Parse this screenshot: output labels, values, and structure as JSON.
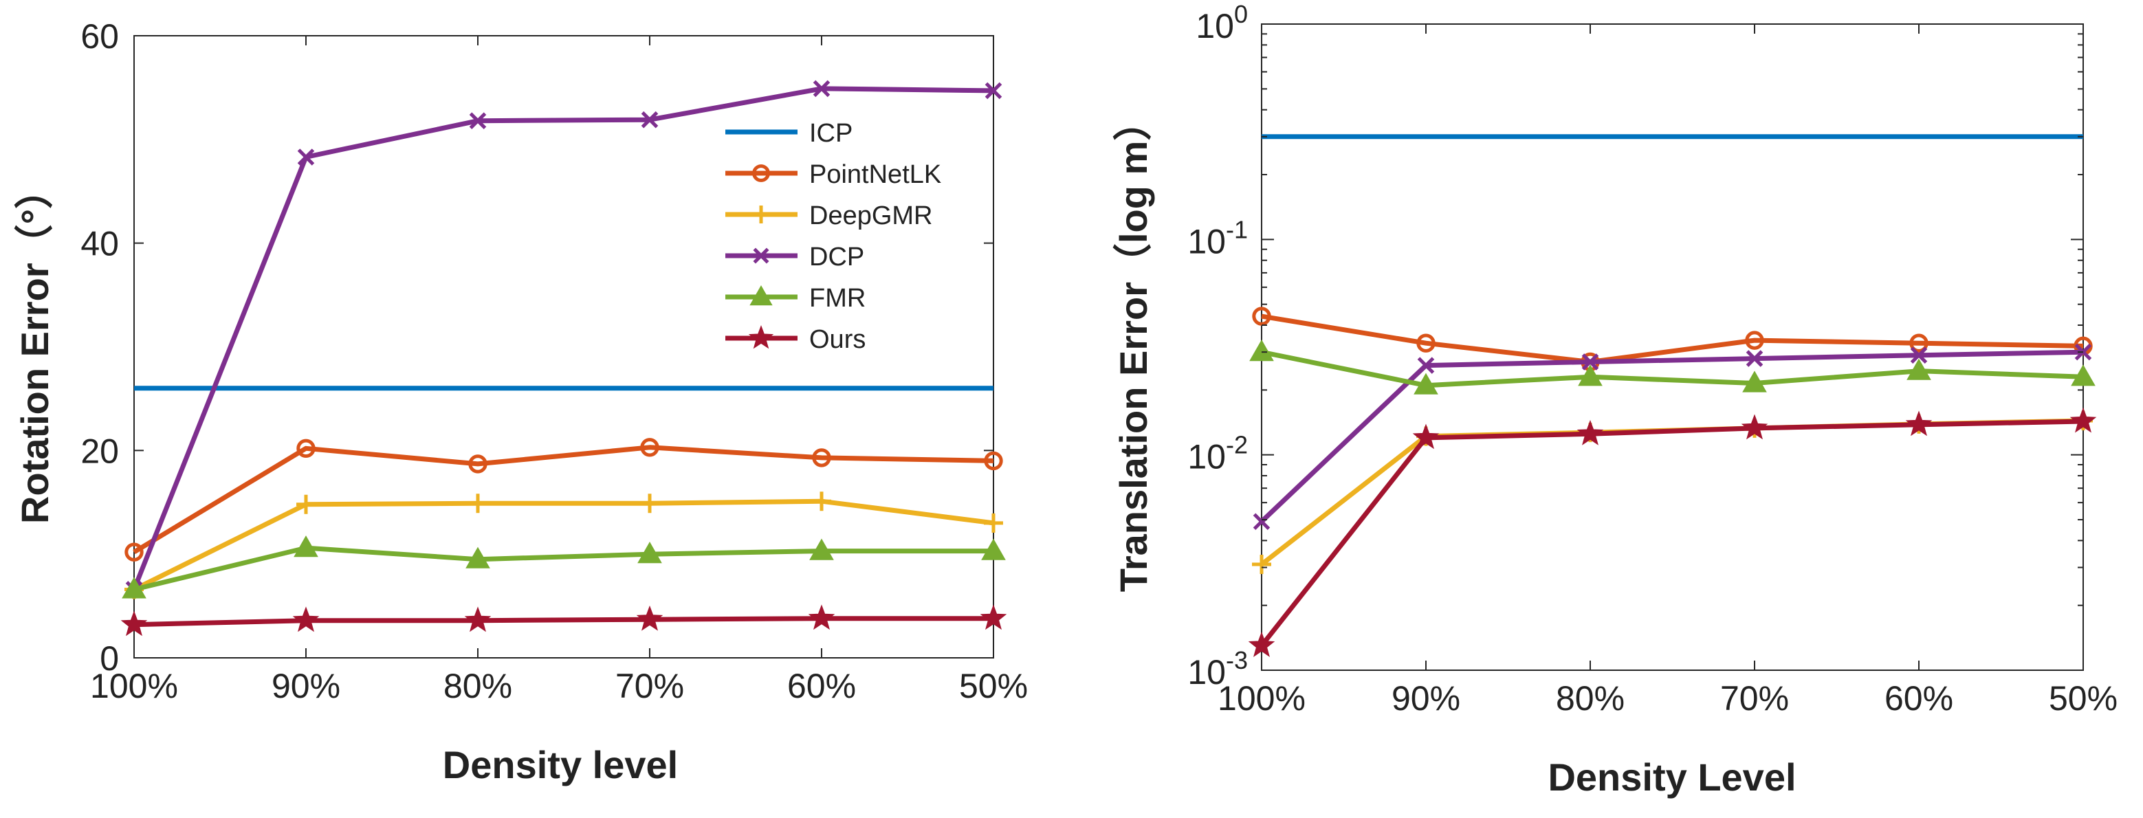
{
  "chart_data": [
    {
      "type": "line",
      "title": "",
      "xlabel": "Density level",
      "ylabel": "Rotation Error（°）",
      "categories": [
        "100%",
        "90%",
        "80%",
        "70%",
        "60%",
        "50%"
      ],
      "ylim": [
        0,
        60
      ],
      "yticks": [
        "0",
        "20",
        "40",
        "60"
      ],
      "yscale": "linear",
      "grid": false,
      "legend": "top-right",
      "series": [
        {
          "name": "ICP",
          "values": [
            26,
            26,
            26,
            26,
            26,
            26
          ],
          "color": "#0072BD",
          "marker": "none"
        },
        {
          "name": "PointNetLK",
          "values": [
            10.2,
            20.2,
            18.7,
            20.3,
            19.3,
            19.0
          ],
          "color": "#D95319",
          "marker": "circle"
        },
        {
          "name": "DeepGMR",
          "values": [
            6.6,
            14.8,
            14.9,
            14.9,
            15.1,
            13.0
          ],
          "color": "#EDB120",
          "marker": "plus"
        },
        {
          "name": "DCP",
          "values": [
            6.6,
            48.3,
            51.8,
            51.9,
            54.9,
            54.7
          ],
          "color": "#7E2F8E",
          "marker": "x"
        },
        {
          "name": "FMR",
          "values": [
            6.6,
            10.6,
            9.5,
            10.0,
            10.3,
            10.3
          ],
          "color": "#77AC30",
          "marker": "triangle"
        },
        {
          "name": "Ours",
          "values": [
            3.2,
            3.6,
            3.6,
            3.7,
            3.8,
            3.8
          ],
          "color": "#A2142F",
          "marker": "star"
        }
      ]
    },
    {
      "type": "line",
      "title": "",
      "xlabel": "Density Level",
      "ylabel": "Translation Error（log m）",
      "categories": [
        "100%",
        "90%",
        "80%",
        "70%",
        "60%",
        "50%"
      ],
      "ylim": [
        0.001,
        1
      ],
      "yscale": "log",
      "yticks": [
        {
          "base": "10",
          "exp": "-3"
        },
        {
          "base": "10",
          "exp": "-2"
        },
        {
          "base": "10",
          "exp": "-1"
        },
        {
          "base": "10",
          "exp": "0"
        }
      ],
      "grid": false,
      "legend": "none",
      "series": [
        {
          "name": "ICP",
          "values": [
            0.3,
            0.3,
            0.3,
            0.3,
            0.3,
            0.3
          ],
          "color": "#0072BD",
          "marker": "none"
        },
        {
          "name": "PointNetLK",
          "values": [
            0.044,
            0.033,
            0.027,
            0.034,
            0.033,
            0.032
          ],
          "color": "#D95319",
          "marker": "circle"
        },
        {
          "name": "DeepGMR",
          "values": [
            0.0031,
            0.0122,
            0.0127,
            0.0133,
            0.0139,
            0.0144
          ],
          "color": "#EDB120",
          "marker": "plus"
        },
        {
          "name": "DCP",
          "values": [
            0.0049,
            0.026,
            0.027,
            0.028,
            0.029,
            0.03
          ],
          "color": "#7E2F8E",
          "marker": "x"
        },
        {
          "name": "FMR",
          "values": [
            0.03,
            0.021,
            0.023,
            0.0215,
            0.0245,
            0.023
          ],
          "color": "#77AC30",
          "marker": "triangle"
        },
        {
          "name": "Ours",
          "values": [
            0.0013,
            0.012,
            0.0125,
            0.0133,
            0.0138,
            0.0143
          ],
          "color": "#A2142F",
          "marker": "star"
        }
      ]
    }
  ]
}
